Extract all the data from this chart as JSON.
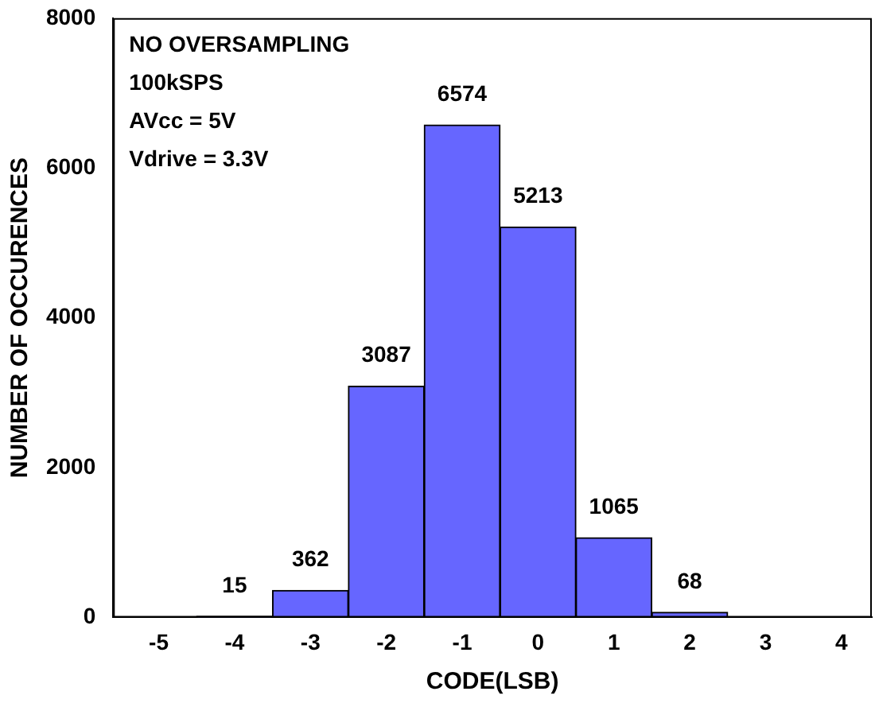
{
  "chart_data": {
    "type": "histogram",
    "xlabel": "CODE(LSB)",
    "ylabel": "NUMBER OF OCCURENCES",
    "bins": [
      -4.5,
      -3.5,
      -2.5,
      -1.5,
      -0.5,
      0.5,
      1.5,
      2.5
    ],
    "values": [
      15,
      362,
      3087,
      6574,
      5213,
      1065,
      68
    ],
    "color": "#6666ff",
    "xlim": [
      -5.6,
      4.4
    ],
    "xticks": [
      -5,
      -4,
      -3,
      -2,
      -1,
      0,
      1,
      2,
      3,
      4
    ],
    "ylim": [
      0,
      8000
    ],
    "yticks": [
      0,
      2000,
      4000,
      6000,
      8000
    ],
    "data_labels": true,
    "grid": false,
    "legend": false,
    "annotations": [
      "NO OVERSAMPLING",
      "100kSPS",
      "AVcc = 5V",
      "Vdrive = 3.3V"
    ]
  }
}
